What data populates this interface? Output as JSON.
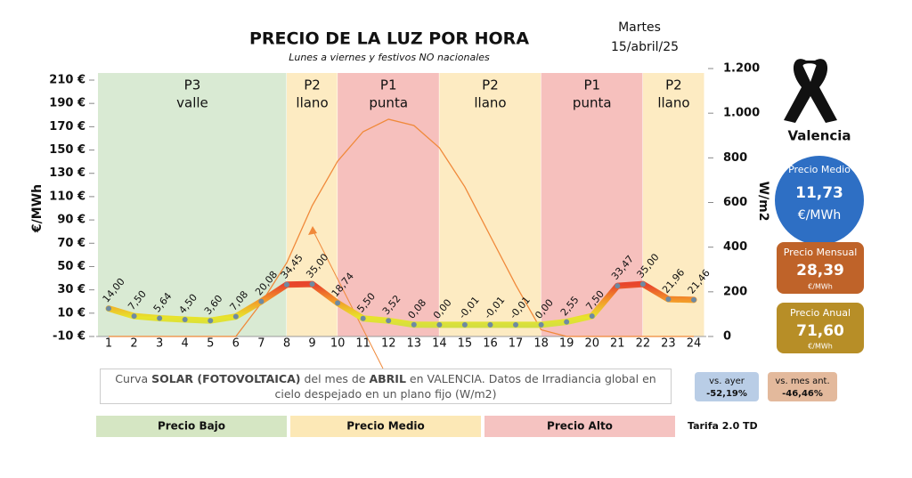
{
  "header": {
    "title": "PRECIO DE LA LUZ POR HORA",
    "subtitle": "Lunes a viernes y festivos NO nacionales",
    "weekday": "Martes",
    "date": "15/abril/25"
  },
  "location": "Valencia",
  "summary": {
    "medio": {
      "label": "Precio Medio",
      "value": "11,73",
      "unit": "€/MWh"
    },
    "mensual": {
      "label": "Precio Mensual",
      "value": "28,39",
      "unit": "€/MWh"
    },
    "anual": {
      "label": "Precio Anual",
      "value": "71,60",
      "unit": "€/MWh"
    },
    "vs_ayer": {
      "label": "vs. ayer",
      "value": "-52,19%"
    },
    "vs_mes": {
      "label": "vs. mes ant.",
      "value": "-46,46%"
    }
  },
  "note": [
    {
      "text": "Curva ",
      "bold": false
    },
    {
      "text": "SOLAR (FOTOVOLTAICA)",
      "bold": true
    },
    {
      "text": " del mes de ",
      "bold": false
    },
    {
      "text": "ABRIL",
      "bold": true
    },
    {
      "text": " en VALENCIA. Datos de Irradiancia global en cielo despejado en un plano fijo (W/m2)",
      "bold": false
    }
  ],
  "legend": [
    {
      "name": "Precio Bajo",
      "color": "#d5e6c3"
    },
    {
      "name": "Precio Medio",
      "color": "#fce8b6"
    },
    {
      "name": "Precio Alto",
      "color": "#f5c3c1"
    }
  ],
  "tariff": "Tarifa 2.0 TD",
  "chart_data": {
    "type": "line",
    "ylabel": "€/MWh",
    "y2label": "W/m2",
    "categories": [
      1,
      2,
      3,
      4,
      5,
      6,
      7,
      8,
      9,
      10,
      11,
      12,
      13,
      14,
      15,
      16,
      17,
      18,
      19,
      20,
      21,
      22,
      23,
      24
    ],
    "series": [
      {
        "color": "#e8452c",
        "values": [
          14.0,
          7.5,
          5.64,
          4.5,
          3.6,
          7.08,
          20.08,
          34.45,
          35.0,
          18.74,
          5.5,
          3.52,
          0.08,
          0.0,
          -0.01,
          -0.01,
          -0.01,
          0.0,
          2.55,
          7.5,
          33.47,
          35.0,
          21.96,
          21.46
        ],
        "value_labels": [
          "14,00",
          "7,50",
          "5,64",
          "4,50",
          "3,60",
          "7,08",
          "20,08",
          "34,45",
          "35,00",
          "18,74",
          "5,50",
          "3,52",
          "0,08",
          "0,00",
          "-0,01",
          "-0,01",
          "-0,01",
          "0,00",
          "2,55",
          "7,50",
          "33,47",
          "35,00",
          "21,96",
          "21,46"
        ]
      },
      {
        "color": "#f0893a",
        "axis": "y2",
        "values": [
          0,
          0,
          0,
          0,
          0,
          0,
          150,
          330,
          586,
          785,
          917,
          973,
          945,
          845,
          670,
          450,
          231,
          30,
          0,
          0,
          0,
          0,
          0,
          0
        ]
      }
    ],
    "ylim": [
      -10,
      210
    ],
    "yticks": [
      {
        "value": -10,
        "label": "-10 €"
      },
      {
        "value": 10,
        "label": "10 €"
      },
      {
        "value": 30,
        "label": "30 €"
      },
      {
        "value": 50,
        "label": "50 €"
      },
      {
        "value": 70,
        "label": "70 €"
      },
      {
        "value": 90,
        "label": "90 €"
      },
      {
        "value": 110,
        "label": "110 €"
      },
      {
        "value": 130,
        "label": "130 €"
      },
      {
        "value": 150,
        "label": "150 €"
      },
      {
        "value": 170,
        "label": "170 €"
      },
      {
        "value": 190,
        "label": "190 €"
      },
      {
        "value": 210,
        "label": "210 €"
      }
    ],
    "y2lim": [
      0,
      1200
    ],
    "y2ticks": [
      0,
      200,
      400,
      600,
      800,
      {
        "value": 1000,
        "label": "1.000"
      },
      {
        "value": 1200,
        "label": "1.200"
      }
    ],
    "periods": [
      {
        "code": "P3",
        "name": "valle",
        "hours": [
          1,
          8
        ],
        "color": "#d9ead3"
      },
      {
        "code": "P2",
        "name": "llano",
        "hours": [
          9,
          10
        ],
        "color": "#fdebc2"
      },
      {
        "code": "P1",
        "name": "punta",
        "hours": [
          11,
          14
        ],
        "color": "#f6c0bd"
      },
      {
        "code": "P2",
        "name": "llano",
        "hours": [
          15,
          18
        ],
        "color": "#fdebc2"
      },
      {
        "code": "P1",
        "name": "punta",
        "hours": [
          19,
          22
        ],
        "color": "#f6c0bd"
      },
      {
        "code": "P2",
        "name": "llano",
        "hours": [
          23,
          24
        ],
        "color": "#fdebc2"
      }
    ]
  }
}
